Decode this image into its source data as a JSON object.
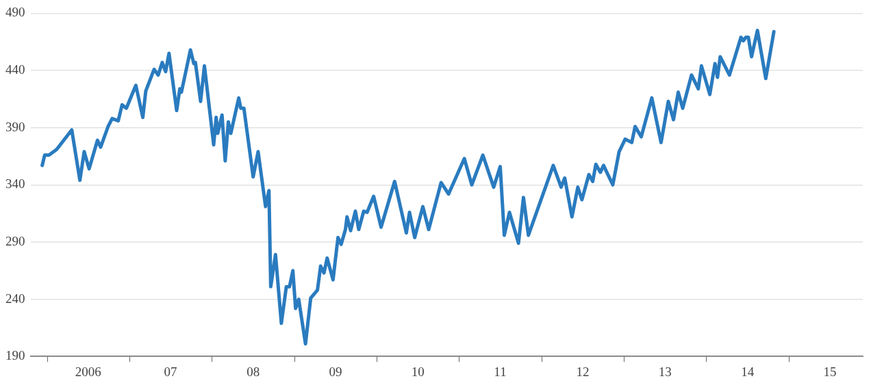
{
  "chart_data": {
    "type": "line",
    "color": "#2a7bbf",
    "x": [
      "2005-12-09",
      "2005-12-20",
      "2006-01-08",
      "2006-02-11",
      "2006-04-19",
      "2006-05-25",
      "2006-06-13",
      "2006-07-05",
      "2006-08-11",
      "2006-08-25",
      "2006-09-27",
      "2006-10-15",
      "2006-11-11",
      "2006-11-28",
      "2006-12-17",
      "2007-01-28",
      "2007-02-28",
      "2007-03-13",
      "2007-04-19",
      "2007-05-07",
      "2007-05-25",
      "2007-06-09",
      "2007-06-24",
      "2007-07-28",
      "2007-08-11",
      "2007-08-18",
      "2007-09-27",
      "2007-10-12",
      "2007-10-19",
      "2007-11-11",
      "2007-11-28",
      "2008-01-08",
      "2008-01-19",
      "2008-01-26",
      "2008-02-14",
      "2008-02-28",
      "2008-03-13",
      "2008-03-24",
      "2008-04-28",
      "2008-05-07",
      "2008-05-21",
      "2008-07-01",
      "2008-07-23",
      "2008-08-25",
      "2008-09-09",
      "2008-09-17",
      "2008-10-08",
      "2008-11-03",
      "2008-11-25",
      "2008-12-09",
      "2008-12-24",
      "2009-01-05",
      "2009-01-19",
      "2009-02-18",
      "2009-03-13",
      "2009-04-12",
      "2009-04-26",
      "2009-05-11",
      "2009-05-25",
      "2009-06-20",
      "2009-07-12",
      "2009-07-26",
      "2009-08-14",
      "2009-08-21",
      "2009-09-06",
      "2009-09-27",
      "2009-10-12",
      "2009-11-03",
      "2009-11-18",
      "2009-12-17",
      "2010-01-19",
      "2010-03-20",
      "2010-05-11",
      "2010-05-25",
      "2010-06-17",
      "2010-07-23",
      "2010-08-18",
      "2010-10-12",
      "2010-11-14",
      "2011-01-23",
      "2011-02-25",
      "2011-04-15",
      "2011-06-02",
      "2011-07-01",
      "2011-07-19",
      "2011-08-11",
      "2011-09-20",
      "2011-10-12",
      "2011-11-03",
      "2012-02-21",
      "2012-03-27",
      "2012-04-12",
      "2012-05-14",
      "2012-06-09",
      "2012-06-27",
      "2012-07-28",
      "2012-08-14",
      "2012-08-28",
      "2012-09-17",
      "2012-10-01",
      "2012-11-11",
      "2012-12-09",
      "2013-01-05",
      "2013-02-03",
      "2013-02-18",
      "2013-03-17",
      "2013-05-03",
      "2013-06-13",
      "2013-07-15",
      "2013-08-07",
      "2013-08-28",
      "2013-09-17",
      "2013-10-26",
      "2013-11-25",
      "2013-12-09",
      "2014-01-15",
      "2014-02-07",
      "2014-02-18",
      "2014-03-02",
      "2014-04-12",
      "2014-06-02",
      "2014-06-13",
      "2014-06-24",
      "2014-07-05",
      "2014-07-19",
      "2014-08-14",
      "2014-09-20",
      "2014-10-26"
    ],
    "values": [
      357,
      366,
      366,
      371,
      388,
      344,
      369,
      354,
      379,
      373,
      391,
      398,
      396,
      410,
      407,
      427,
      399,
      422,
      441,
      436,
      447,
      439,
      455,
      405,
      424,
      421,
      458,
      446,
      447,
      413,
      444,
      375,
      399,
      385,
      401,
      361,
      395,
      385,
      416,
      407,
      407,
      347,
      369,
      321,
      335,
      251,
      279,
      219,
      251,
      251,
      265,
      232,
      240,
      201,
      241,
      248,
      269,
      263,
      276,
      257,
      294,
      288,
      301,
      312,
      300,
      317,
      301,
      317,
      316,
      330,
      303,
      343,
      298,
      316,
      294,
      321,
      301,
      342,
      332,
      363,
      340,
      366,
      338,
      356,
      296,
      316,
      289,
      329,
      296,
      357,
      338,
      346,
      312,
      338,
      327,
      349,
      343,
      358,
      351,
      357,
      340,
      369,
      380,
      377,
      391,
      382,
      416,
      377,
      413,
      397,
      421,
      407,
      436,
      424,
      444,
      419,
      446,
      434,
      452,
      436,
      469,
      466,
      469,
      469,
      452,
      475,
      433,
      474
    ],
    "xlim": [
      "2005-10-18",
      "2015-11-24"
    ],
    "xticks": [
      {
        "value": "2006-01-01",
        "label": null
      },
      {
        "value": "2006-07-01",
        "label": "2006"
      },
      {
        "value": "2007-01-01",
        "label": null
      },
      {
        "value": "2007-07-01",
        "label": "07"
      },
      {
        "value": "2008-01-01",
        "label": null
      },
      {
        "value": "2008-07-01",
        "label": "08"
      },
      {
        "value": "2009-01-01",
        "label": null
      },
      {
        "value": "2009-07-01",
        "label": "09"
      },
      {
        "value": "2010-01-01",
        "label": null
      },
      {
        "value": "2010-07-01",
        "label": "10"
      },
      {
        "value": "2011-01-01",
        "label": null
      },
      {
        "value": "2011-07-01",
        "label": "11"
      },
      {
        "value": "2012-01-01",
        "label": null
      },
      {
        "value": "2012-07-01",
        "label": "12"
      },
      {
        "value": "2013-01-01",
        "label": null
      },
      {
        "value": "2013-07-01",
        "label": "13"
      },
      {
        "value": "2014-01-01",
        "label": null
      },
      {
        "value": "2014-07-01",
        "label": "14"
      },
      {
        "value": "2015-01-01",
        "label": null
      },
      {
        "value": "2015-07-01",
        "label": "15"
      }
    ],
    "ylim": [
      190,
      490
    ],
    "yticks": [
      190,
      240,
      290,
      340,
      390,
      440,
      490
    ],
    "grid": "y",
    "legend": false,
    "marker": "none",
    "line_style": "solid"
  }
}
